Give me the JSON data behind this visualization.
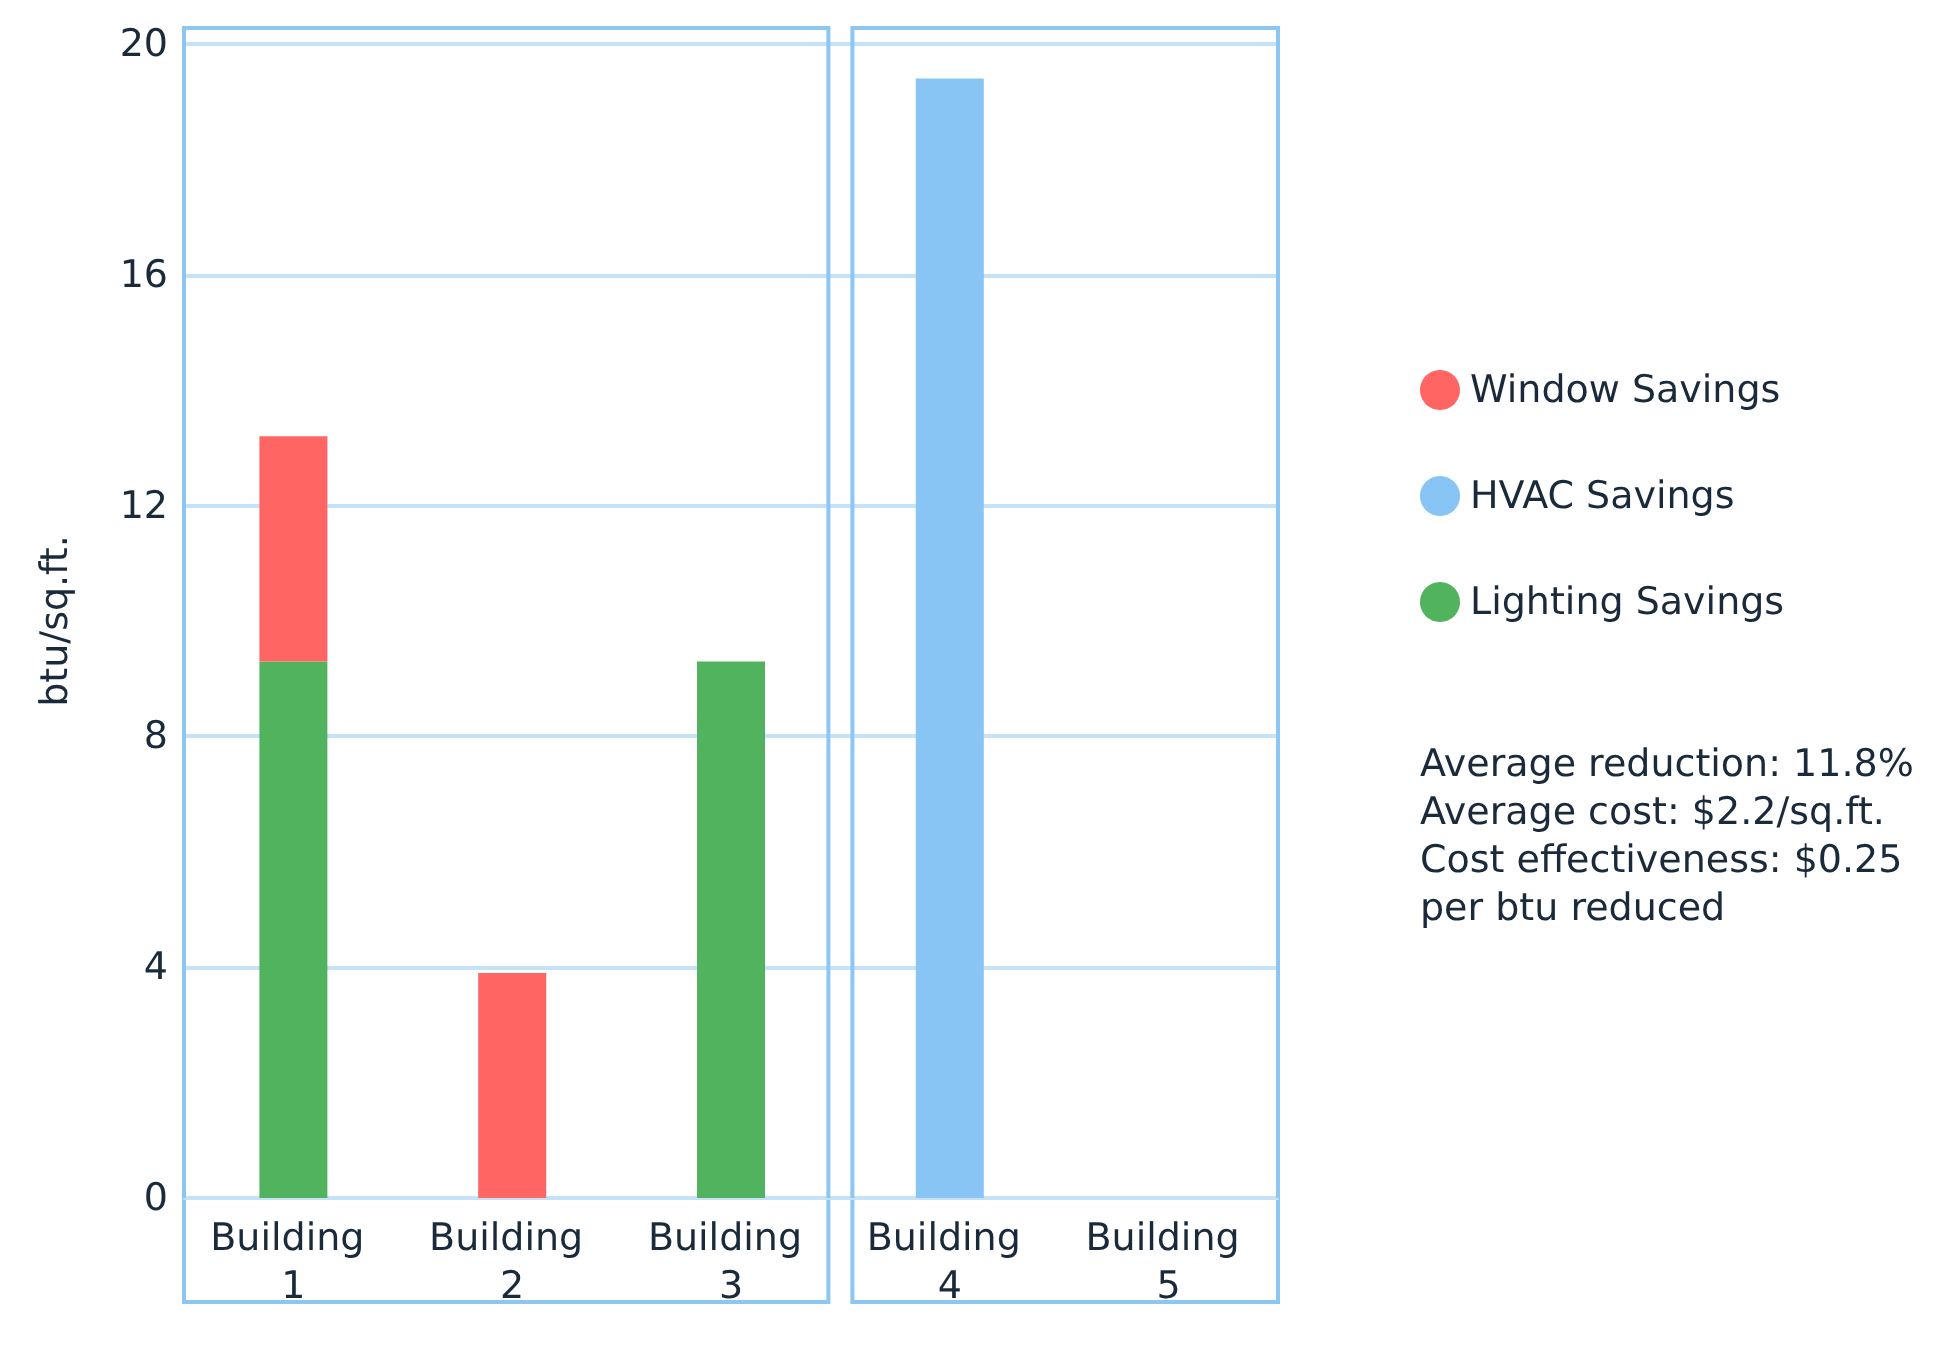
{
  "chart_data": {
    "type": "bar",
    "stacked": true,
    "ylabel": "btu/sq.ft.",
    "categories": [
      "Building 1",
      "Building 2",
      "Building 3",
      "Building 4",
      "Building 5"
    ],
    "series": [
      {
        "name": "Lighting Savings",
        "color": "#52b35e",
        "values": [
          9.3,
          null,
          9.3,
          null,
          null
        ]
      },
      {
        "name": "HVAC Savings",
        "color": "#88c4f4",
        "values": [
          null,
          null,
          null,
          19.4,
          null
        ]
      },
      {
        "name": "Window Savings",
        "color": "#ff6663",
        "values": [
          3.9,
          3.9,
          null,
          null,
          null
        ]
      }
    ],
    "ylim": [
      0,
      20
    ],
    "yticks": [
      0,
      4,
      8,
      12,
      16,
      20
    ],
    "grid": "y",
    "legend": "right",
    "annotations": [
      "Average reduction: 11.8%",
      "Average cost: $2.2/sq.ft.",
      "Cost effectiveness: $0.25 per btu reduced"
    ]
  }
}
